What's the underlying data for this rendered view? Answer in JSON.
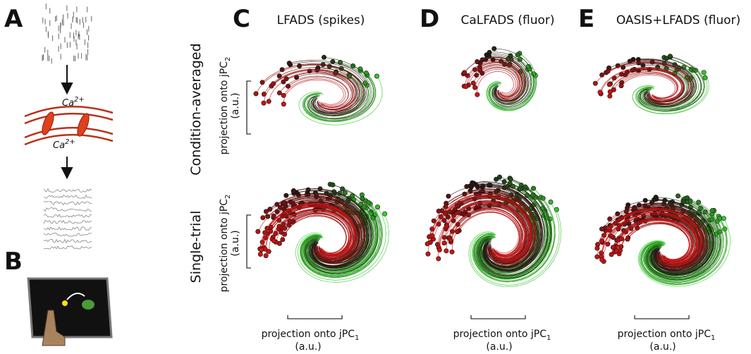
{
  "panels": {
    "a": {
      "label": "A",
      "ion": {
        "base": "Ca",
        "charge": "2+"
      }
    },
    "b": {
      "label": "B"
    },
    "c": {
      "label": "C",
      "title": "LFADS (spikes)"
    },
    "d": {
      "label": "D",
      "title": "CaLFADS (fluor)"
    },
    "e": {
      "label": "E",
      "title": "OASIS+LFADS (fluor)"
    }
  },
  "rows": [
    "Condition-averaged",
    "Single-trial"
  ],
  "y_axis_label": {
    "text": "projection onto jPC",
    "subscript": "2",
    "unit": "(a.u.)"
  },
  "x_axis_label": {
    "text": "projection onto jPC",
    "subscript": "1",
    "unit": "(a.u.)"
  }
}
